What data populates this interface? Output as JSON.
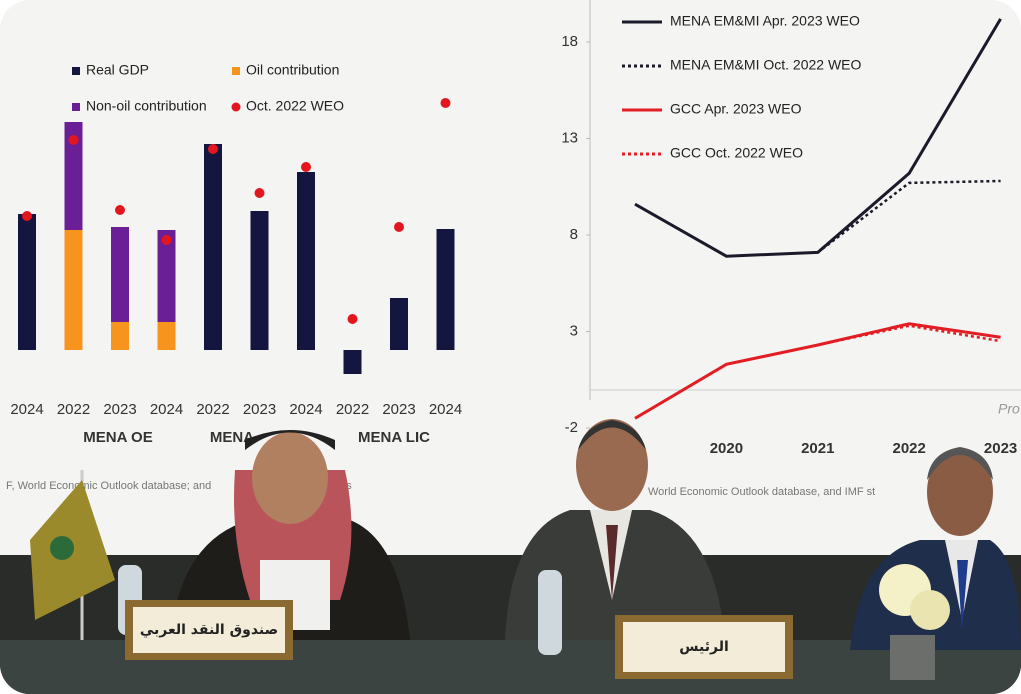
{
  "left_chart": {
    "categories": [
      "2024",
      "2022",
      "2023",
      "2024",
      "2022",
      "2023",
      "2024",
      "2022",
      "2023",
      "2024"
    ],
    "groups": [
      "MENA OE",
      "MENA",
      "MENA LIC"
    ],
    "series": [
      {
        "name": "Real GDP",
        "color": "#15163f",
        "values": [
          6.8,
          null,
          null,
          null,
          10.3,
          6.95,
          8.9,
          -1.2,
          2.6,
          6.05
        ]
      },
      {
        "name": "Oil contribution",
        "color": "#f7941d",
        "values": [
          null,
          6.0,
          1.4,
          1.4,
          null,
          null,
          null,
          null,
          null,
          null
        ]
      },
      {
        "name": "Non-oil contribution",
        "color": "#6b1f96",
        "values": [
          null,
          5.4,
          4.75,
          4.6,
          null,
          null,
          null,
          null,
          null,
          null
        ]
      },
      {
        "name": "Oct. 2022 WEO",
        "color": "#e3161f",
        "values": [
          6.7,
          10.5,
          7.0,
          5.5,
          10.05,
          7.85,
          9.15,
          1.55,
          6.15,
          12.35
        ]
      }
    ],
    "source": "F, World Economic Outlook database; and",
    "source_end": "ons"
  },
  "right_chart": {
    "x": [
      2019,
      2020,
      2021,
      2022,
      2023
    ],
    "xlim": [
      2019,
      2023.3
    ],
    "xticks": [
      "2020",
      "2021",
      "2022",
      "2023"
    ],
    "ylim": [
      -2,
      18
    ],
    "yticks": [
      18,
      13,
      8,
      3,
      -2
    ],
    "series": [
      {
        "name": "MENA EM&MI Apr. 2023 WEO",
        "color": "#1a1a2a",
        "dash": "solid",
        "values": [
          9.6,
          6.9,
          7.1,
          11.2,
          19.2
        ]
      },
      {
        "name": "MENA EM&MI Oct. 2022 WEO",
        "color": "#1a1a2a",
        "dash": "dotted",
        "values": [
          null,
          null,
          7.1,
          10.7,
          10.8
        ]
      },
      {
        "name": "GCC Apr. 2023 WEO",
        "color": "#e21d24",
        "dash": "solid",
        "values": [
          -1.5,
          1.3,
          2.3,
          3.4,
          2.7
        ]
      },
      {
        "name": "GCC Oct. 2022 WEO",
        "color": "#e21d24",
        "dash": "dotted",
        "values": [
          null,
          null,
          2.3,
          3.3,
          2.5
        ]
      }
    ],
    "corner_text": "Pro",
    "source": "World Economic Outlook database, and IMF st"
  },
  "nameplates": [
    "صندوق النقد العربي",
    "الرئيس"
  ]
}
